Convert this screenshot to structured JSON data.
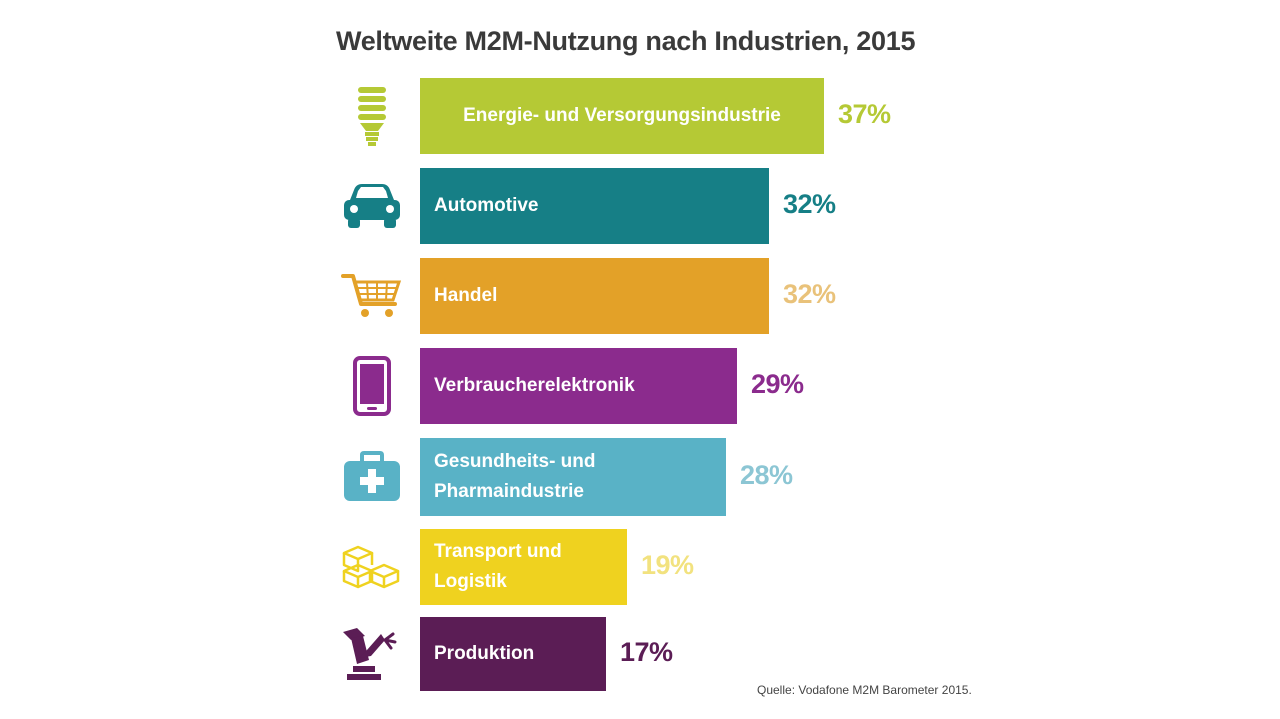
{
  "chart_data": {
    "type": "bar",
    "orientation": "horizontal",
    "title": "Weltweite M2M-Nutzung nach Industrien, 2015",
    "source": "Quelle: Vodafone M2M Barometer 2015.",
    "xlim": [
      0,
      37
    ],
    "bars": [
      {
        "label": "Energie- und Versorgungsindustrie",
        "value": 37,
        "value_label": "37%",
        "color": "#b5c935",
        "icon": "lightbulb-icon",
        "multiline": false
      },
      {
        "label": "Automotive",
        "value": 32,
        "value_label": "32%",
        "color": "#167f86",
        "icon": "car-icon",
        "multiline": false
      },
      {
        "label": "Handel",
        "value": 32,
        "value_label": "32%",
        "color": "#e3a128",
        "icon": "shopping-cart-icon",
        "multiline": false
      },
      {
        "label": "Verbraucherelektronik",
        "value": 29,
        "value_label": "29%",
        "color": "#8b2b8d",
        "icon": "smartphone-icon",
        "multiline": false
      },
      {
        "label": "Gesundheits- und\nPharmaindustrie",
        "value": 28,
        "value_label": "28%",
        "color": "#59b2c6",
        "icon": "medical-kit-icon",
        "multiline": true
      },
      {
        "label": "Transport und\nLogistik",
        "value": 19,
        "value_label": "19%",
        "color": "#efd21f",
        "icon": "boxes-icon",
        "multiline": true
      },
      {
        "label": "Produktion",
        "value": 17,
        "value_label": "17%",
        "color": "#5b1d55",
        "icon": "robot-arm-icon",
        "multiline": false
      }
    ],
    "value_label_colors": [
      "#b5c935",
      "#167f86",
      "#e9c27a",
      "#8b2b8d",
      "#8cc6d4",
      "#f2e27f",
      "#5b1d55"
    ]
  }
}
